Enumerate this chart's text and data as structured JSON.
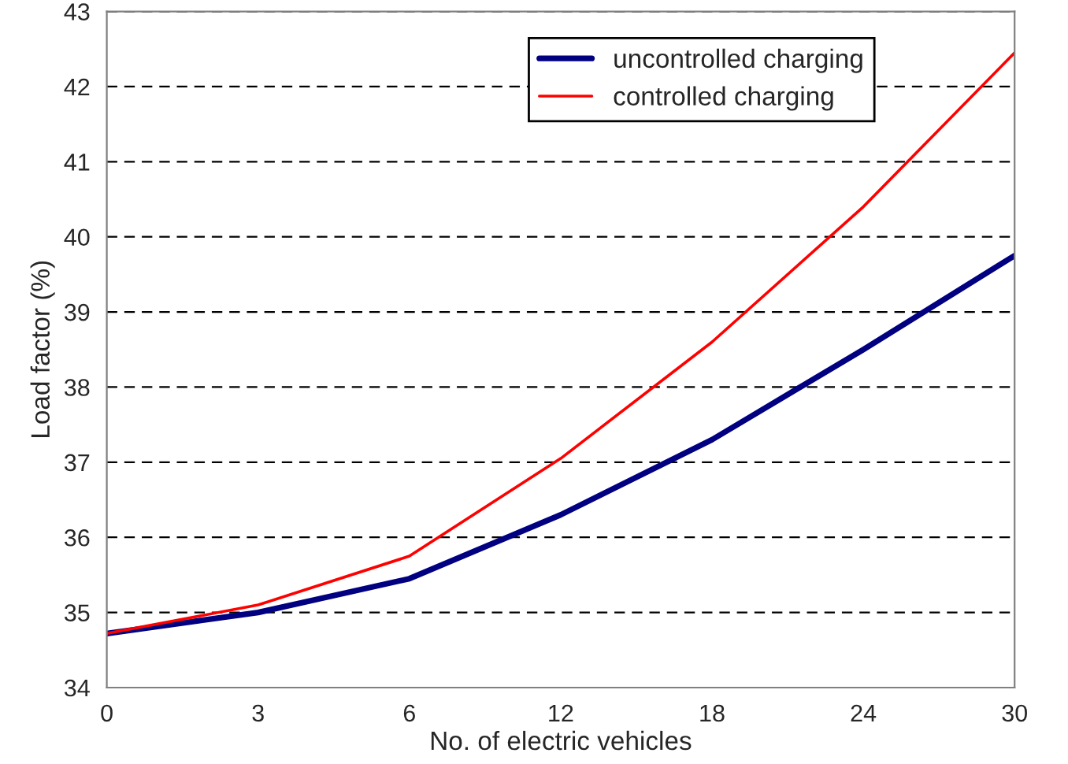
{
  "chart_data": {
    "type": "line",
    "xlabel": "No. of electric vehicles",
    "ylabel": "Load factor (%)",
    "categories": [
      "0",
      "3",
      "6",
      "12",
      "18",
      "24",
      "30"
    ],
    "series": [
      {
        "name": "uncontrolled charging",
        "color": "#000080",
        "values": [
          34.72,
          35.0,
          35.45,
          36.3,
          37.3,
          38.5,
          39.75
        ]
      },
      {
        "name": "controlled charging",
        "color": "#ff0000",
        "values": [
          34.72,
          35.1,
          35.75,
          37.05,
          38.6,
          40.4,
          42.45
        ]
      }
    ],
    "ylim": [
      34,
      43
    ],
    "yticks": [
      34,
      35,
      36,
      37,
      38,
      39,
      40,
      41,
      42,
      43
    ],
    "grid": "y",
    "legend": "top right",
    "marker": "none",
    "line_style": "solid"
  }
}
